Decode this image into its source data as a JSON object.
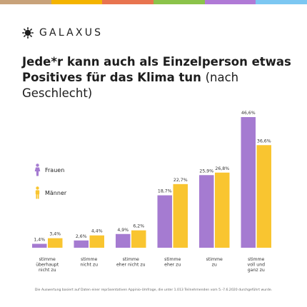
{
  "brand": {
    "name": "GALAXUS",
    "stripe_colors": [
      "#c8a27a",
      "#f4b400",
      "#e8744f",
      "#8bc34a",
      "#b07ad6",
      "#7cc7f2"
    ]
  },
  "title": {
    "main": "Jede*r kann auch als Einzelperson etwas Positives für das Klima tun",
    "sub": "(nach Geschlecht)"
  },
  "legend": {
    "women": "Frauen",
    "men": "Männer",
    "women_color": "#a57bd1",
    "men_color": "#f9c530"
  },
  "footnote": "Die Auswertung basiert auf Daten einer repräsentativen Appinio-Umfrage, die unter 1.013 Teilnehmenden vom 5.-7.6.2020 durchgeführt wurde.",
  "chart_data": {
    "type": "bar",
    "categories": [
      [
        "stimme",
        "überhaupt",
        "nicht zu"
      ],
      [
        "stimme",
        "nicht zu"
      ],
      [
        "stimme",
        "eher nicht zu"
      ],
      [
        "stimme",
        "eher zu"
      ],
      [
        "stimme",
        "zu"
      ],
      [
        "stimme",
        "voll und",
        "ganz zu"
      ]
    ],
    "series": [
      {
        "name": "Frauen",
        "color": "#a57bd1",
        "values": [
          1.4,
          2.6,
          4.9,
          18.7,
          25.9,
          46.6
        ],
        "labels": [
          "1,4%",
          "2,6%",
          "4,9%",
          "18,7%",
          "25,9%",
          "46,6%"
        ]
      },
      {
        "name": "Männer",
        "color": "#f9c530",
        "values": [
          3.4,
          4.4,
          6.2,
          22.7,
          26.8,
          36.6
        ],
        "labels": [
          "3,4%",
          "4,4%",
          "6,2%",
          "22,7%",
          "26,8%",
          "36,6%"
        ]
      }
    ],
    "ylim": [
      0,
      46.6
    ],
    "grid": false,
    "legend_position": "left"
  }
}
